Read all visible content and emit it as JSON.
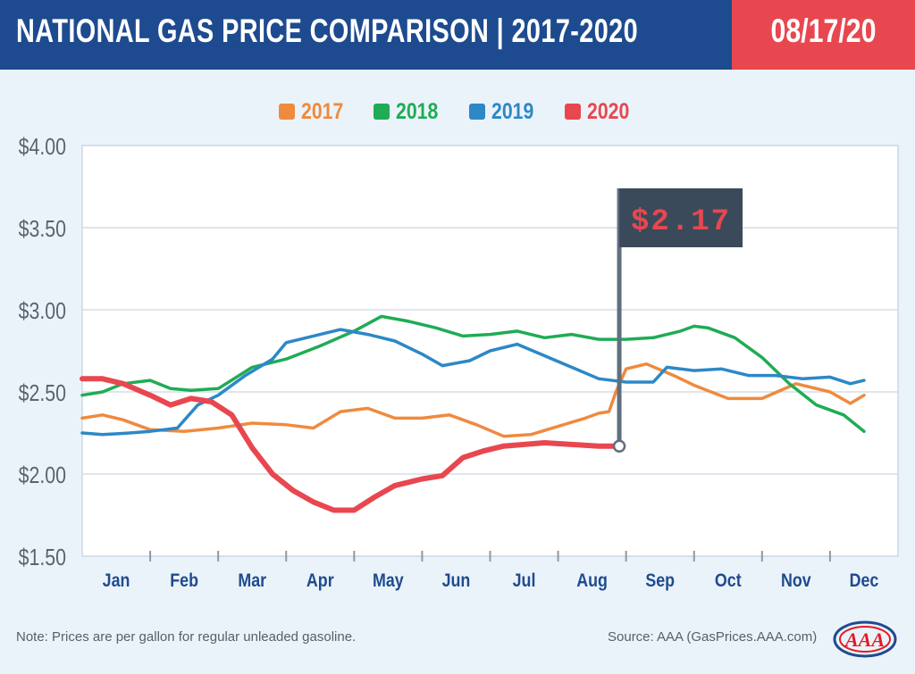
{
  "header": {
    "title": "NATIONAL GAS PRICE COMPARISON | 2017-2020",
    "date": "08/17/20"
  },
  "colors": {
    "header_bg": "#1e4b8f",
    "date_bg": "#e8474f",
    "background": "#ebf3fa"
  },
  "chart_data": {
    "type": "line",
    "title": "",
    "xlabel": "",
    "ylabel": "",
    "categories": [
      "Jan",
      "Feb",
      "Mar",
      "Apr",
      "May",
      "Jun",
      "Jul",
      "Aug",
      "Sep",
      "Oct",
      "Nov",
      "Dec"
    ],
    "ylim": [
      1.5,
      4.0
    ],
    "yticks": [
      "$4.00",
      "$3.50",
      "$3.00",
      "$2.50",
      "$2.00",
      "$1.50"
    ],
    "ytick_values": [
      4.0,
      3.5,
      3.0,
      2.5,
      2.0,
      1.5
    ],
    "grid": true,
    "legend": "top-center",
    "x_unit": "month (0 = Jan 1, 12 = Dec 31)",
    "series": [
      {
        "name": "2017",
        "color": "#ef8a3e",
        "x": [
          0,
          0.3,
          0.6,
          1.0,
          1.5,
          2.0,
          2.5,
          3.0,
          3.4,
          3.8,
          4.2,
          4.6,
          5.0,
          5.4,
          5.8,
          6.2,
          6.6,
          7.0,
          7.4,
          7.6,
          7.75,
          7.85,
          8.0,
          8.3,
          8.7,
          9.0,
          9.5,
          10.0,
          10.5,
          11.0,
          11.3,
          11.5
        ],
        "values": [
          2.34,
          2.36,
          2.33,
          2.27,
          2.26,
          2.28,
          2.31,
          2.3,
          2.28,
          2.38,
          2.4,
          2.34,
          2.34,
          2.36,
          2.3,
          2.23,
          2.24,
          2.29,
          2.34,
          2.37,
          2.38,
          2.5,
          2.64,
          2.67,
          2.6,
          2.54,
          2.46,
          2.46,
          2.55,
          2.5,
          2.43,
          2.48
        ]
      },
      {
        "name": "2018",
        "color": "#1fac55",
        "x": [
          0,
          0.3,
          0.6,
          1.0,
          1.3,
          1.6,
          2.0,
          2.5,
          3.0,
          3.5,
          4.0,
          4.4,
          4.8,
          5.2,
          5.6,
          6.0,
          6.4,
          6.8,
          7.2,
          7.6,
          8.0,
          8.4,
          8.8,
          9.0,
          9.2,
          9.6,
          10.0,
          10.4,
          10.8,
          11.2,
          11.5
        ],
        "values": [
          2.48,
          2.5,
          2.55,
          2.57,
          2.52,
          2.51,
          2.52,
          2.65,
          2.7,
          2.78,
          2.87,
          2.96,
          2.93,
          2.89,
          2.84,
          2.85,
          2.87,
          2.83,
          2.85,
          2.82,
          2.82,
          2.83,
          2.87,
          2.9,
          2.89,
          2.83,
          2.71,
          2.55,
          2.42,
          2.36,
          2.26
        ]
      },
      {
        "name": "2019",
        "color": "#2c88c7",
        "x": [
          0,
          0.3,
          0.7,
          1.0,
          1.4,
          1.7,
          2.0,
          2.4,
          2.8,
          3.0,
          3.4,
          3.8,
          4.2,
          4.6,
          5.0,
          5.3,
          5.7,
          6.0,
          6.4,
          6.8,
          7.2,
          7.6,
          8.0,
          8.4,
          8.6,
          8.8,
          9.0,
          9.4,
          9.8,
          10.2,
          10.6,
          11.0,
          11.3,
          11.5
        ],
        "values": [
          2.25,
          2.24,
          2.25,
          2.26,
          2.28,
          2.42,
          2.48,
          2.6,
          2.7,
          2.8,
          2.84,
          2.88,
          2.85,
          2.81,
          2.73,
          2.66,
          2.69,
          2.75,
          2.79,
          2.72,
          2.65,
          2.58,
          2.56,
          2.56,
          2.65,
          2.64,
          2.63,
          2.64,
          2.6,
          2.6,
          2.58,
          2.59,
          2.55,
          2.57
        ]
      },
      {
        "name": "2020",
        "color": "#e8474f",
        "x": [
          0,
          0.3,
          0.6,
          1.0,
          1.3,
          1.6,
          1.9,
          2.2,
          2.5,
          2.8,
          3.1,
          3.4,
          3.7,
          4.0,
          4.3,
          4.6,
          5.0,
          5.3,
          5.6,
          5.9,
          6.2,
          6.5,
          6.8,
          7.2,
          7.6,
          7.9
        ],
        "values": [
          2.58,
          2.58,
          2.55,
          2.48,
          2.42,
          2.46,
          2.44,
          2.36,
          2.16,
          2.0,
          1.9,
          1.83,
          1.78,
          1.78,
          1.86,
          1.93,
          1.97,
          1.99,
          2.1,
          2.14,
          2.17,
          2.18,
          2.19,
          2.18,
          2.17,
          2.17
        ]
      }
    ],
    "annotation": {
      "label": "$2.17",
      "x": 7.9,
      "value": 2.17
    }
  },
  "footer": {
    "note": "Note: Prices are per gallon for regular unleaded gasoline.",
    "source": "Source: AAA (GasPrices.AAA.com)",
    "logo_text": "AAA"
  }
}
